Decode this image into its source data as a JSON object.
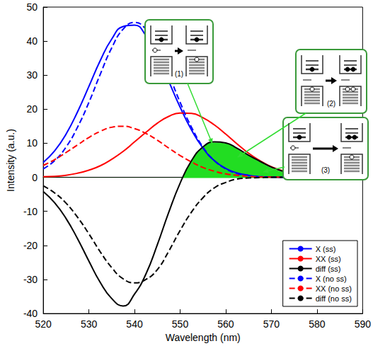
{
  "chart_data": {
    "type": "line",
    "xlabel": "Wavelength (nm)",
    "ylabel": "Intensity (a.u.)",
    "x": [
      520,
      522.5,
      525,
      527.5,
      530,
      532.5,
      535,
      537.5,
      540,
      542.5,
      545,
      547.5,
      550,
      552.5,
      555,
      557.5,
      560,
      562.5,
      565,
      567.5,
      570,
      572.5,
      575,
      577.5,
      580,
      582.5,
      585,
      587.5,
      590
    ],
    "series": [
      {
        "name": "X (ss)",
        "color": "#0000ff",
        "line_style": "solid",
        "values": [
          4.4,
          7.8,
          12.7,
          19.2,
          26.7,
          34.3,
          40.6,
          44.3,
          44.7,
          41.6,
          35.7,
          28.2,
          20.6,
          13.9,
          8.6,
          4.9,
          2.6,
          1.3,
          0.6,
          0.2,
          0.1,
          0,
          0,
          0,
          0,
          0,
          0,
          0,
          0
        ]
      },
      {
        "name": "XX (ss)",
        "color": "#ff0000",
        "line_style": "solid",
        "values": [
          0.2,
          0.3,
          0.6,
          1.2,
          2.1,
          3.4,
          5.3,
          7.6,
          10.4,
          13.2,
          15.9,
          17.9,
          18.9,
          18.8,
          17.5,
          15.4,
          12.7,
          9.8,
          7.1,
          4.9,
          3.1,
          1.9,
          1.1,
          0.6,
          0.3,
          0.1,
          0.1,
          0,
          0
        ]
      },
      {
        "name": "diff (ss)",
        "color": "#000000",
        "line_style": "solid",
        "values": [
          -4.2,
          -7.5,
          -12.1,
          -18.0,
          -24.6,
          -30.9,
          -35.6,
          -37.8,
          -34.3,
          -28.4,
          -19.8,
          -10.3,
          -1.7,
          4.9,
          8.9,
          10.4,
          10.1,
          8.5,
          6.5,
          4.7,
          3.0,
          1.8,
          1.1,
          0.6,
          0.3,
          0.1,
          0.1,
          0,
          0
        ]
      },
      {
        "name": "X (no ss)",
        "color": "#0000ff",
        "line_style": "dashed",
        "values": [
          2.5,
          4.9,
          8.9,
          14.7,
          22.0,
          30.3,
          38.0,
          43.5,
          45.5,
          43.5,
          38.0,
          30.3,
          22.0,
          14.7,
          8.9,
          4.9,
          2.5,
          1.1,
          0.5,
          0.2,
          0.1,
          0,
          0,
          0,
          0,
          0,
          0,
          0,
          0
        ]
      },
      {
        "name": "XX (no ss)",
        "color": "#ff0000",
        "line_style": "dashed",
        "values": [
          3.5,
          5.2,
          7.3,
          9.5,
          11.7,
          13.5,
          14.7,
          15.0,
          14.3,
          12.9,
          10.9,
          8.6,
          6.4,
          4.5,
          2.9,
          1.8,
          1.0,
          0.6,
          0.3,
          0.1,
          0.1,
          0,
          0,
          0,
          0,
          0,
          0,
          0,
          0
        ]
      },
      {
        "name": "diff (no ss)",
        "color": "#000000",
        "line_style": "dashed",
        "values": [
          -2.5,
          -4.6,
          -7.6,
          -11.7,
          -16.6,
          -21.9,
          -26.5,
          -29.8,
          -31.0,
          -30.0,
          -27.1,
          -21.7,
          -15.6,
          -10.2,
          -6.0,
          -3.1,
          -1.5,
          -0.5,
          -0.2,
          -0.1,
          0,
          0,
          0,
          0,
          0,
          0,
          0,
          0,
          0
        ]
      }
    ],
    "xlim": [
      520,
      590
    ],
    "xticks": [
      520,
      530,
      540,
      550,
      560,
      570,
      580,
      590
    ],
    "ylim": [
      -40,
      50
    ],
    "yticks": [
      -40,
      -30,
      -20,
      -10,
      0,
      10,
      20,
      30,
      40,
      50
    ],
    "grid": false,
    "legend": "lower right",
    "annotations": [
      "(1)",
      "(2)",
      "(3)"
    ]
  }
}
